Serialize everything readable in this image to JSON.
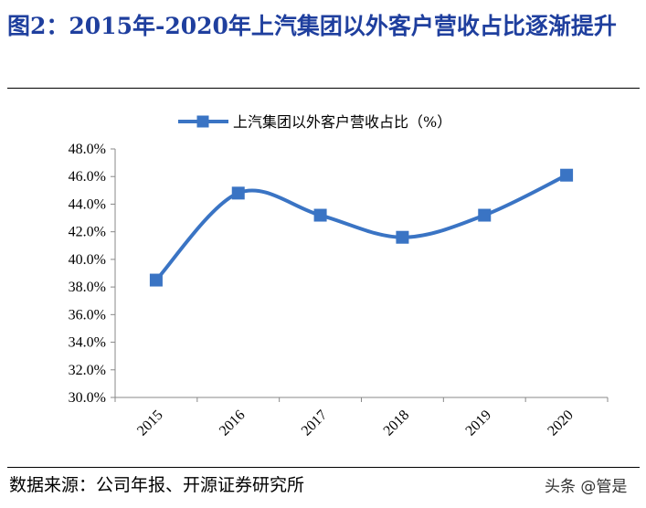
{
  "figure": {
    "title": "图2：2015年-2020年上汽集团以外客户营收占比逐渐提升",
    "source": "数据来源：公司年报、开源证券研究所",
    "watermark": "头条 @管是"
  },
  "chart_data": {
    "type": "line",
    "title": "",
    "legend": [
      "上汽集团以外客户营收占比（%）"
    ],
    "legend_position": "top",
    "x": [
      "2015",
      "2016",
      "2017",
      "2018",
      "2019",
      "2020"
    ],
    "series": [
      {
        "name": "上汽集团以外客户营收占比（%）",
        "values": [
          38.5,
          44.8,
          43.2,
          41.6,
          43.2,
          46.1
        ]
      }
    ],
    "ylim": [
      30.0,
      48.0
    ],
    "yticks": [
      "30.0%",
      "32.0%",
      "34.0%",
      "36.0%",
      "38.0%",
      "40.0%",
      "42.0%",
      "44.0%",
      "46.0%",
      "48.0%"
    ],
    "ytick_values": [
      30,
      32,
      34,
      36,
      38,
      40,
      42,
      44,
      46,
      48
    ],
    "smooth": true,
    "marker": "square",
    "grid": false,
    "colors": {
      "line": "#3a74c4",
      "title": "#1f3f9e"
    }
  }
}
